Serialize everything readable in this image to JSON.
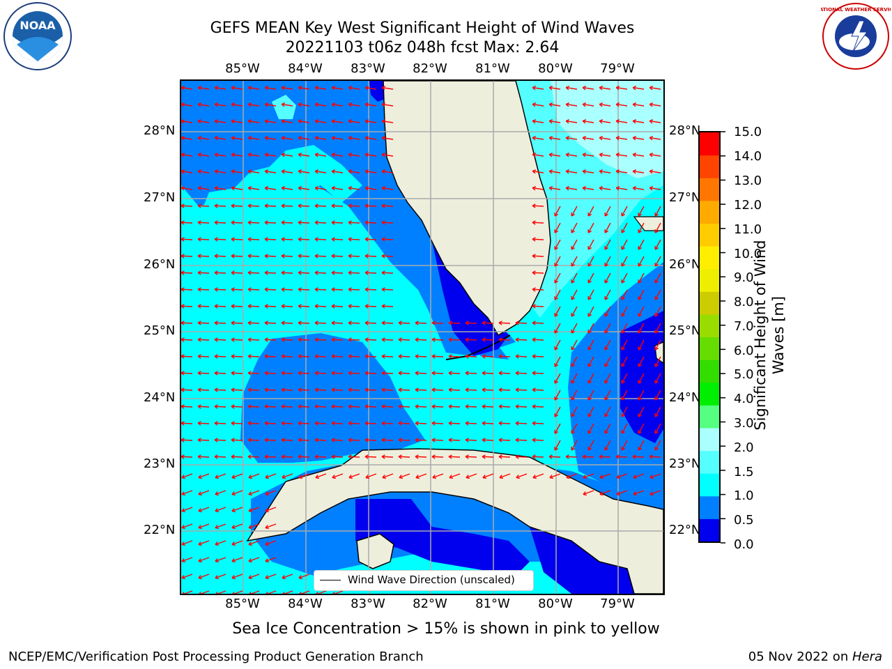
{
  "title": {
    "line1": "GEFS MEAN Key West Significant Height of Wind Waves",
    "line2": "20221103 t06z 048h fcst   Max: 2.64"
  },
  "map": {
    "lon_labels": [
      "85°W",
      "84°W",
      "83°W",
      "82°W",
      "81°W",
      "80°W",
      "79°W"
    ],
    "lat_labels": [
      "28°N",
      "27°N",
      "26°N",
      "25°N",
      "24°N",
      "23°N",
      "22°N"
    ],
    "legend_label": "Wind Wave Direction (unscaled)"
  },
  "colorbar": {
    "label": "Significant Height of Wind Waves [m]",
    "ticks": [
      "15.0",
      "14.0",
      "13.0",
      "12.0",
      "11.0",
      "10.0",
      "9.0",
      "8.0",
      "7.0",
      "6.0",
      "5.0",
      "4.0",
      "3.0",
      "2.0",
      "1.5",
      "1.0",
      "0.5",
      "0.0"
    ],
    "colors": [
      "#0000ee",
      "#0080ff",
      "#00ffff",
      "#55ffff",
      "#aaffff",
      "#55ff80",
      "#00ee00",
      "#33dd00",
      "#66dd00",
      "#99dd00",
      "#cccc00",
      "#eeee00",
      "#ffee00",
      "#ffcc00",
      "#ffaa00",
      "#ff7700",
      "#ff4400",
      "#ff0000"
    ]
  },
  "palette": {
    "deep_blue": "#0000ee",
    "blue": "#0080ff",
    "cyan": "#00ffff",
    "light_cyan": "#55ffff",
    "pale_cyan": "#aaffff",
    "land": "#eeeedd",
    "arrow": "#ff0000"
  },
  "notes": {
    "sea_ice": "Sea Ice Concentration > 15% is shown in pink to yellow",
    "producer": "NCEP/EMC/Verification Post Processing Product Generation Branch",
    "date": "05 Nov 2022 on ",
    "machine": "Hera"
  },
  "logos": {
    "noaa_text": "NOAA",
    "nws_text": "NATIONAL WEATHER SERVICE"
  }
}
